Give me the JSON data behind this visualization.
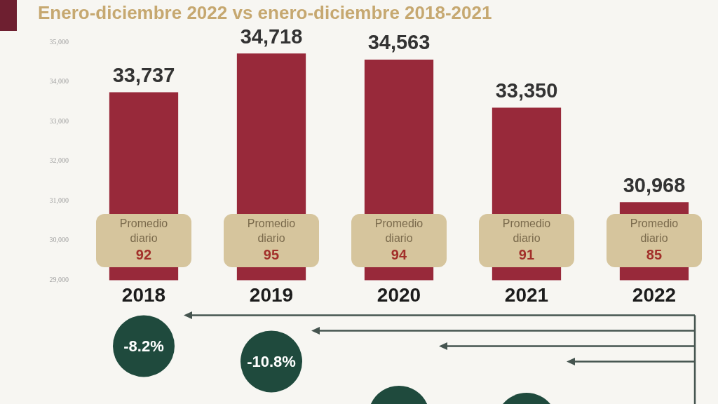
{
  "chart_data": {
    "type": "bar",
    "title": "Enero-diciembre 2022 vs enero-diciembre 2018-2021",
    "categories": [
      "2018",
      "2019",
      "2020",
      "2021",
      "2022"
    ],
    "values": [
      33737,
      34718,
      34563,
      33350,
      30968
    ],
    "color": "#98293a",
    "value_labels": [
      "33,737",
      "34,718",
      "34,563",
      "33,350",
      "30,968"
    ],
    "ylim": [
      29000,
      35000
    ],
    "yticks": [
      {
        "value": 29000,
        "label": "29,000"
      },
      {
        "value": 30000,
        "label": "30,000"
      },
      {
        "value": 31000,
        "label": "31,000"
      },
      {
        "value": 32000,
        "label": "32,000"
      },
      {
        "value": 33000,
        "label": "33,000"
      },
      {
        "value": 34000,
        "label": "34,000"
      },
      {
        "value": 35000,
        "label": "35,000"
      }
    ],
    "annotations": [
      "Promedio\ndiario\n92",
      "Promedio\ndiario\n95",
      "Promedio\ndiario\n94",
      "Promedio\ndiario\n91",
      "Promedio\ndiario\n85",
      "-8.2%",
      "-10.8%"
    ]
  }
}
